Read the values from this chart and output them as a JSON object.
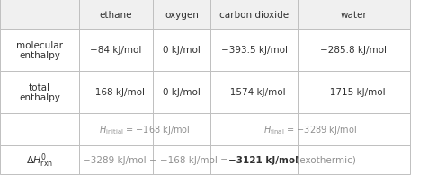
{
  "col_headers": [
    "",
    "ethane",
    "oxygen",
    "carbon dioxide",
    "water"
  ],
  "row1_label": "molecular\nenthalpy",
  "row2_label": "total\nenthalpy",
  "row1_data": [
    "−84 kJ/mol",
    "0 kJ/mol",
    "−393.5 kJ/mol",
    "−285.8 kJ/mol"
  ],
  "row2_data": [
    "−168 kJ/mol",
    "0 kJ/mol",
    "−1574 kJ/mol",
    "−1715 kJ/mol"
  ],
  "bg_color": "#ffffff",
  "border_color": "#c0c0c0",
  "text_color": "#303030",
  "gray_text": "#909090",
  "fig_w": 4.96,
  "fig_h": 2.05,
  "dpi": 100
}
